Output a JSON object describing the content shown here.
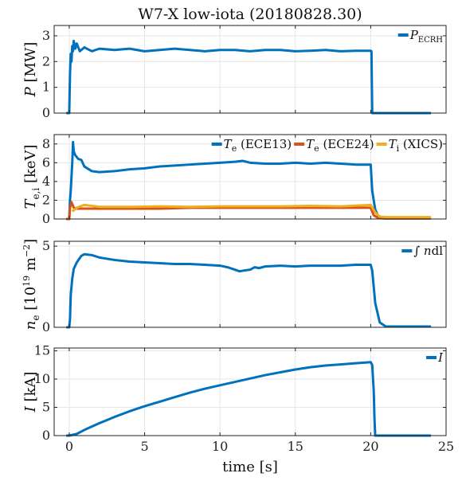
{
  "figure": {
    "title": "W7-X low-iota (20180828.30)",
    "xlabel": "time [s]",
    "xlim": [
      -1,
      25
    ],
    "xticks": [
      0,
      5,
      10,
      15,
      20,
      25
    ]
  },
  "colors": {
    "blue": "#0072BD",
    "orange": "#D95319",
    "yellow": "#EDB120"
  },
  "chart_data": [
    {
      "type": "line",
      "panel": "P",
      "ylabel": "P [MW]",
      "ylim": [
        0,
        3.4
      ],
      "yticks": [
        0,
        1,
        2,
        3
      ],
      "grid": true,
      "legend_position": "top-right",
      "series": [
        {
          "name": "P_ECRH",
          "color": "#0072BD",
          "x": [
            -0.2,
            0.0,
            0.05,
            0.1,
            0.15,
            0.2,
            0.25,
            0.3,
            0.4,
            0.5,
            0.7,
            1.0,
            1.5,
            2,
            3,
            4,
            5,
            6,
            7,
            8,
            9,
            10,
            11,
            12,
            13,
            14,
            15,
            16,
            17,
            18,
            19,
            20,
            20.05,
            20.1,
            24
          ],
          "y": [
            0,
            0,
            1.5,
            2.3,
            2.0,
            2.6,
            2.4,
            2.8,
            2.5,
            2.7,
            2.4,
            2.55,
            2.4,
            2.5,
            2.45,
            2.5,
            2.4,
            2.45,
            2.5,
            2.45,
            2.4,
            2.45,
            2.45,
            2.4,
            2.45,
            2.45,
            2.4,
            2.42,
            2.45,
            2.4,
            2.42,
            2.42,
            2.4,
            0,
            0
          ]
        }
      ]
    },
    {
      "type": "line",
      "panel": "T",
      "ylabel": "T_e,i [keV]",
      "ylim": [
        0,
        9
      ],
      "yticks": [
        0,
        2,
        4,
        6,
        8
      ],
      "grid": true,
      "legend_position": "top-right",
      "series": [
        {
          "name": "T_e (ECE13)",
          "color": "#0072BD",
          "x": [
            -0.2,
            0.0,
            0.05,
            0.1,
            0.2,
            0.25,
            0.3,
            0.4,
            0.6,
            0.8,
            1.0,
            1.5,
            2,
            3,
            4,
            5,
            6,
            7,
            8,
            9,
            10,
            11,
            11.5,
            12,
            13,
            14,
            15,
            16,
            17,
            18,
            19,
            20,
            20.1,
            20.3,
            20.5,
            21,
            22,
            24
          ],
          "y": [
            0,
            0,
            2,
            3,
            6,
            8.2,
            7.2,
            6.8,
            6.4,
            6.3,
            5.6,
            5.1,
            5.0,
            5.1,
            5.3,
            5.4,
            5.6,
            5.7,
            5.8,
            5.9,
            6.0,
            6.1,
            6.2,
            6.0,
            5.9,
            5.9,
            6.0,
            5.9,
            6.0,
            5.9,
            5.8,
            5.8,
            3.0,
            1.0,
            0.3,
            0.1,
            0.1,
            0.1
          ]
        },
        {
          "name": "T_e (ECE24)",
          "color": "#D95319",
          "x": [
            -0.2,
            0.0,
            0.05,
            0.15,
            0.3,
            0.5,
            1.0,
            2,
            4,
            6,
            8,
            10,
            12,
            14,
            16,
            18,
            20,
            20.2,
            20.5,
            21,
            24
          ],
          "y": [
            0,
            0,
            1.2,
            1.8,
            1.2,
            1.1,
            1.1,
            1.1,
            1.1,
            1.1,
            1.2,
            1.2,
            1.2,
            1.2,
            1.2,
            1.2,
            1.2,
            0.4,
            0.1,
            0.05,
            0.05
          ]
        },
        {
          "name": "T_i (XICS)",
          "color": "#EDB120",
          "x": [
            0.2,
            0.5,
            1.0,
            1.5,
            2,
            4,
            6,
            8,
            10,
            12,
            14,
            16,
            18,
            20,
            20.3,
            20.6,
            21,
            24
          ],
          "y": [
            0.8,
            1.2,
            1.5,
            1.4,
            1.3,
            1.3,
            1.35,
            1.3,
            1.35,
            1.35,
            1.35,
            1.4,
            1.35,
            1.5,
            0.7,
            0.25,
            0.2,
            0.2
          ]
        }
      ]
    },
    {
      "type": "line",
      "panel": "n",
      "ylabel": "n_e [10^19 m^-2]",
      "ylim": [
        0,
        5.3
      ],
      "yticks": [
        0,
        5
      ],
      "grid": true,
      "legend_position": "top-right",
      "series": [
        {
          "name": "∫ n dl",
          "color": "#0072BD",
          "x": [
            -0.2,
            0.0,
            0.05,
            0.1,
            0.2,
            0.3,
            0.5,
            0.8,
            1.0,
            1.5,
            2,
            3,
            4,
            5,
            6,
            7,
            8,
            9,
            10,
            10.5,
            11,
            11.3,
            11.6,
            12,
            12.3,
            12.6,
            13,
            14,
            15,
            16,
            17,
            18,
            19,
            20,
            20.1,
            20.3,
            20.6,
            21,
            22,
            24
          ],
          "y": [
            0,
            0,
            0.5,
            2.0,
            3.0,
            3.6,
            4.0,
            4.4,
            4.5,
            4.45,
            4.3,
            4.15,
            4.05,
            4.0,
            3.95,
            3.9,
            3.9,
            3.85,
            3.8,
            3.7,
            3.55,
            3.45,
            3.5,
            3.55,
            3.7,
            3.65,
            3.75,
            3.8,
            3.75,
            3.8,
            3.8,
            3.8,
            3.85,
            3.85,
            3.5,
            1.5,
            0.3,
            0.05,
            0.05,
            0.05
          ]
        }
      ]
    },
    {
      "type": "line",
      "panel": "I",
      "ylabel": "I [kA]",
      "ylim": [
        0,
        15.5
      ],
      "yticks": [
        0,
        5,
        10,
        15
      ],
      "grid": true,
      "legend_position": "top-right",
      "series": [
        {
          "name": "I",
          "color": "#0072BD",
          "x": [
            -0.2,
            0.0,
            0.5,
            1,
            2,
            3,
            4,
            5,
            6,
            7,
            8,
            9,
            10,
            11,
            12,
            13,
            14,
            15,
            16,
            17,
            18,
            19,
            20,
            20.1,
            20.2,
            20.25,
            20.3,
            21,
            24
          ],
          "y": [
            0,
            0,
            0.3,
            1.0,
            2.2,
            3.3,
            4.3,
            5.2,
            6.0,
            6.8,
            7.6,
            8.3,
            8.9,
            9.5,
            10.1,
            10.7,
            11.2,
            11.7,
            12.1,
            12.4,
            12.6,
            12.8,
            13.0,
            12.5,
            8,
            3,
            0,
            0,
            0
          ]
        }
      ]
    }
  ]
}
